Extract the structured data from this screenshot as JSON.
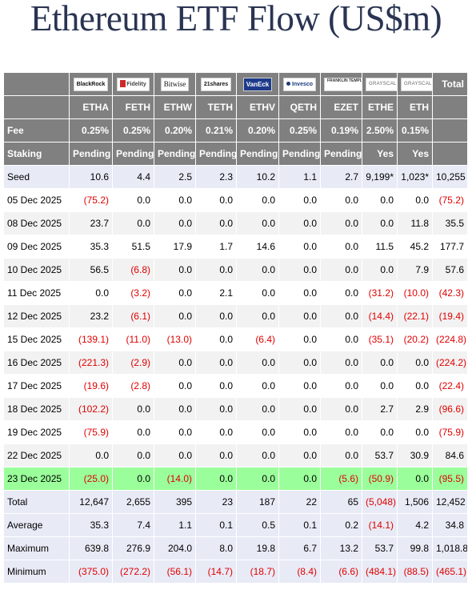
{
  "title": "Ethereum ETF Flow (US$m)",
  "chart_data": {
    "type": "table",
    "title": "Ethereum ETF Flow (US$m)",
    "issuer_logos": [
      "BlackRock",
      "Fidelity",
      "Bitwise",
      "21shares",
      "VanEck",
      "Invesco",
      "FRANKLIN TEMPLETON",
      "GRAYSCALE",
      "GRAYSCALE"
    ],
    "total_header": "Total",
    "tickers": [
      "ETHA",
      "FETH",
      "ETHW",
      "TETH",
      "ETHV",
      "QETH",
      "EZET",
      "ETHE",
      "ETH"
    ],
    "fee_label": "Fee",
    "fees": [
      "0.25%",
      "0.25%",
      "0.20%",
      "0.21%",
      "0.20%",
      "0.25%",
      "0.19%",
      "2.50%",
      "0.15%"
    ],
    "staking_label": "Staking",
    "staking": [
      "Pending",
      "Pending",
      "Pending",
      "Pending",
      "Pending",
      "Pending",
      "Pending",
      "Yes",
      "Yes"
    ],
    "rows": [
      {
        "label": "Seed",
        "values": [
          "10.6",
          "4.4",
          "2.5",
          "2.3",
          "10.2",
          "1.1",
          "2.7",
          "9,199*",
          "1,023*",
          "10,255"
        ]
      },
      {
        "label": "05 Dec 2025",
        "values": [
          "(75.2)",
          "0.0",
          "0.0",
          "0.0",
          "0.0",
          "0.0",
          "0.0",
          "0.0",
          "0.0",
          "(75.2)"
        ]
      },
      {
        "label": "08 Dec 2025",
        "values": [
          "23.7",
          "0.0",
          "0.0",
          "0.0",
          "0.0",
          "0.0",
          "0.0",
          "0.0",
          "11.8",
          "35.5"
        ]
      },
      {
        "label": "09 Dec 2025",
        "values": [
          "35.3",
          "51.5",
          "17.9",
          "1.7",
          "14.6",
          "0.0",
          "0.0",
          "11.5",
          "45.2",
          "177.7"
        ]
      },
      {
        "label": "10 Dec 2025",
        "values": [
          "56.5",
          "(6.8)",
          "0.0",
          "0.0",
          "0.0",
          "0.0",
          "0.0",
          "0.0",
          "7.9",
          "57.6"
        ]
      },
      {
        "label": "11 Dec 2025",
        "values": [
          "0.0",
          "(3.2)",
          "0.0",
          "2.1",
          "0.0",
          "0.0",
          "0.0",
          "(31.2)",
          "(10.0)",
          "(42.3)"
        ]
      },
      {
        "label": "12 Dec 2025",
        "values": [
          "23.2",
          "(6.1)",
          "0.0",
          "0.0",
          "0.0",
          "0.0",
          "0.0",
          "(14.4)",
          "(22.1)",
          "(19.4)"
        ]
      },
      {
        "label": "15 Dec 2025",
        "values": [
          "(139.1)",
          "(11.0)",
          "(13.0)",
          "0.0",
          "(6.4)",
          "0.0",
          "0.0",
          "(35.1)",
          "(20.2)",
          "(224.8)"
        ]
      },
      {
        "label": "16 Dec 2025",
        "values": [
          "(221.3)",
          "(2.9)",
          "0.0",
          "0.0",
          "0.0",
          "0.0",
          "0.0",
          "0.0",
          "0.0",
          "(224.2)"
        ]
      },
      {
        "label": "17 Dec 2025",
        "values": [
          "(19.6)",
          "(2.8)",
          "0.0",
          "0.0",
          "0.0",
          "0.0",
          "0.0",
          "0.0",
          "0.0",
          "(22.4)"
        ]
      },
      {
        "label": "18 Dec 2025",
        "values": [
          "(102.2)",
          "0.0",
          "0.0",
          "0.0",
          "0.0",
          "0.0",
          "0.0",
          "2.7",
          "2.9",
          "(96.6)"
        ]
      },
      {
        "label": "19 Dec 2025",
        "values": [
          "(75.9)",
          "0.0",
          "0.0",
          "0.0",
          "0.0",
          "0.0",
          "0.0",
          "0.0",
          "0.0",
          "(75.9)"
        ]
      },
      {
        "label": "22 Dec 2025",
        "values": [
          "0.0",
          "0.0",
          "0.0",
          "0.0",
          "0.0",
          "0.0",
          "0.0",
          "53.7",
          "30.9",
          "84.6"
        ]
      },
      {
        "label": "23 Dec 2025",
        "values": [
          "(25.0)",
          "0.0",
          "(14.0)",
          "0.0",
          "0.0",
          "0.0",
          "(5.6)",
          "(50.9)",
          "0.0",
          "(95.5)"
        ],
        "highlight": true
      },
      {
        "label": "Total",
        "values": [
          "12,647",
          "2,655",
          "395",
          "23",
          "187",
          "22",
          "65",
          "(5,048)",
          "1,506",
          "12,452"
        ]
      },
      {
        "label": "Average",
        "values": [
          "35.3",
          "7.4",
          "1.1",
          "0.1",
          "0.5",
          "0.1",
          "0.2",
          "(14.1)",
          "4.2",
          "34.8"
        ]
      },
      {
        "label": "Maximum",
        "values": [
          "639.8",
          "276.9",
          "204.0",
          "8.0",
          "19.8",
          "6.7",
          "13.2",
          "53.7",
          "99.8",
          "1,018.8"
        ]
      },
      {
        "label": "Minimum",
        "values": [
          "(375.0)",
          "(272.2)",
          "(56.1)",
          "(14.7)",
          "(18.7)",
          "(8.4)",
          "(6.6)",
          "(484.1)",
          "(88.5)",
          "(465.1)"
        ]
      }
    ]
  },
  "colors": {
    "header_bg": "#808080",
    "negative": "#e00000",
    "highlight_row": "#9aff9a",
    "seed_and_stats_bg": "#e8ebf6",
    "alt_row": "#f2f2f2",
    "title": "#2a3452"
  }
}
